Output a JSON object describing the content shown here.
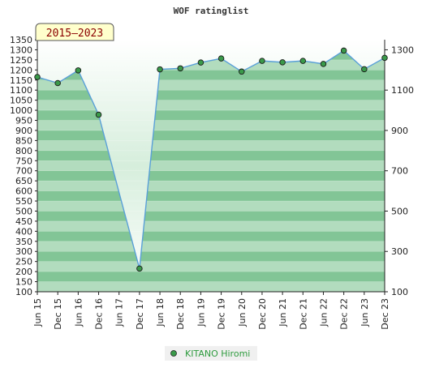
{
  "chart_data": {
    "type": "area",
    "title": "WOF ratinglist",
    "period_badge": "2015–2023",
    "xlabel": "",
    "ylabel": "",
    "categories": [
      "Jun 15",
      "Dec 15",
      "Jun 16",
      "Dec 16",
      "Jun 17",
      "Dec 17",
      "Jun 18",
      "Dec 18",
      "Jun 19",
      "Dec 19",
      "Jun 20",
      "Dec 20",
      "Jun 21",
      "Dec 21",
      "Jun 22",
      "Dec 22",
      "Jun 23",
      "Dec 23"
    ],
    "series": [
      {
        "name": "KITANO Hiromi",
        "values": [
          1165,
          1135,
          1198,
          978,
          592,
          215,
          1203,
          1208,
          1237,
          1257,
          1192,
          1245,
          1238,
          1245,
          1230,
          1296,
          1204,
          1260
        ],
        "markers": [
          true,
          true,
          true,
          true,
          false,
          true,
          true,
          true,
          true,
          true,
          true,
          true,
          true,
          true,
          true,
          true,
          true,
          true
        ]
      }
    ],
    "ylim": [
      100,
      1350
    ],
    "left_ticks": [
      100,
      150,
      200,
      250,
      300,
      350,
      400,
      450,
      500,
      550,
      600,
      650,
      700,
      750,
      800,
      850,
      900,
      950,
      1000,
      1050,
      1100,
      1150,
      1200,
      1250,
      1300,
      1350
    ],
    "right_ticks": [
      100,
      300,
      500,
      700,
      900,
      1100,
      1300
    ],
    "grid": true,
    "legend": "bottom-center",
    "colors": {
      "line": "#5aa0d8",
      "marker": "#3a9a4a",
      "band_dark": "#82c596",
      "band_light": "#b2dcbe",
      "legend_text": "#2e9b3e",
      "badge_bg": "#ffffcc",
      "badge_text": "#8b0000"
    }
  }
}
